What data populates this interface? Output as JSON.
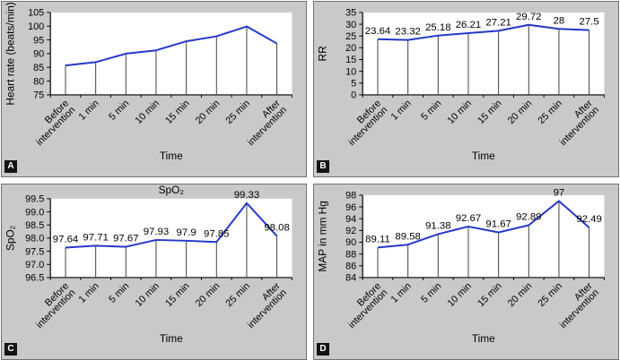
{
  "style": {
    "panel_bg": "#c9c9c9",
    "plot_bg": "#ffffff",
    "line_color": "#2438c8",
    "axis_color": "#000000",
    "drop_line_color": "#404040",
    "badge_bg": "#141414",
    "badge_fg": "#ffffff",
    "text_color": "#000000"
  },
  "chart_data": [
    {
      "panel": "A",
      "type": "line",
      "title": "",
      "ylabel": "Heart rate (beats/min)",
      "xlabel": "Time",
      "categories": [
        "Before\nintervention",
        "1 min",
        "5 min",
        "10 min",
        "15 min",
        "20 min",
        "25 min",
        "After\nintervention"
      ],
      "values": [
        85.7,
        86.9,
        90.0,
        91.2,
        94.5,
        96.3,
        99.9,
        93.7
      ],
      "data_labels": null,
      "ylim": [
        75,
        105
      ],
      "ytick_labels": [
        "75",
        "80",
        "85",
        "90",
        "95",
        "100",
        "105"
      ],
      "grid": false,
      "legend": "none"
    },
    {
      "panel": "B",
      "type": "line",
      "title": "",
      "ylabel": "RR",
      "xlabel": "Time",
      "categories": [
        "Before\nintervention",
        "1 min",
        "5 min",
        "10 min",
        "15 min",
        "20 min",
        "25 min",
        "After\nintervention"
      ],
      "values": [
        23.64,
        23.32,
        25.18,
        26.21,
        27.21,
        29.72,
        28,
        27.5
      ],
      "data_labels": [
        "23.64",
        "23.32",
        "25.18",
        "26.21",
        "27.21",
        "29.72",
        "28",
        "27.5"
      ],
      "ylim": [
        0,
        35
      ],
      "ytick_labels": [
        "0",
        "5",
        "10",
        "15",
        "20",
        "25",
        "30",
        "35"
      ],
      "grid": false,
      "legend": "none"
    },
    {
      "panel": "C",
      "type": "line",
      "title": "SpO₂",
      "ylabel": "SpO₂",
      "xlabel": "Time",
      "categories": [
        "Before\nintervention",
        "1 min",
        "5 min",
        "10 min",
        "15 min",
        "20 min",
        "25 min",
        "After\nintervention"
      ],
      "values": [
        97.64,
        97.71,
        97.67,
        97.93,
        97.9,
        97.85,
        99.33,
        98.08
      ],
      "data_labels": [
        "97.64",
        "97.71",
        "97.67",
        "97.93",
        "97.9",
        "97.85",
        "99.33",
        "98.08"
      ],
      "ylim": [
        96.5,
        99.5
      ],
      "ytick_labels": [
        "96.5",
        "97.0",
        "97.5",
        "98.0",
        "98.5",
        "99.0",
        "99.5"
      ],
      "grid": false,
      "legend": "none"
    },
    {
      "panel": "D",
      "type": "line",
      "title": "",
      "ylabel": "MAP in mm Hg",
      "xlabel": "Time",
      "categories": [
        "Before\nintervention",
        "1 min",
        "5 min",
        "10 min",
        "15 min",
        "20 min",
        "25 min",
        "After\nintervention"
      ],
      "values": [
        89.11,
        89.58,
        91.38,
        92.67,
        91.67,
        92.89,
        97,
        92.49
      ],
      "data_labels": [
        "89.11",
        "89.58",
        "91.38",
        "92.67",
        "91.67",
        "92.89",
        "97",
        "92.49"
      ],
      "ylim": [
        84,
        98
      ],
      "ytick_labels": [
        "84",
        "86",
        "88",
        "90",
        "92",
        "94",
        "96",
        "98"
      ],
      "grid": false,
      "legend": "none"
    }
  ]
}
